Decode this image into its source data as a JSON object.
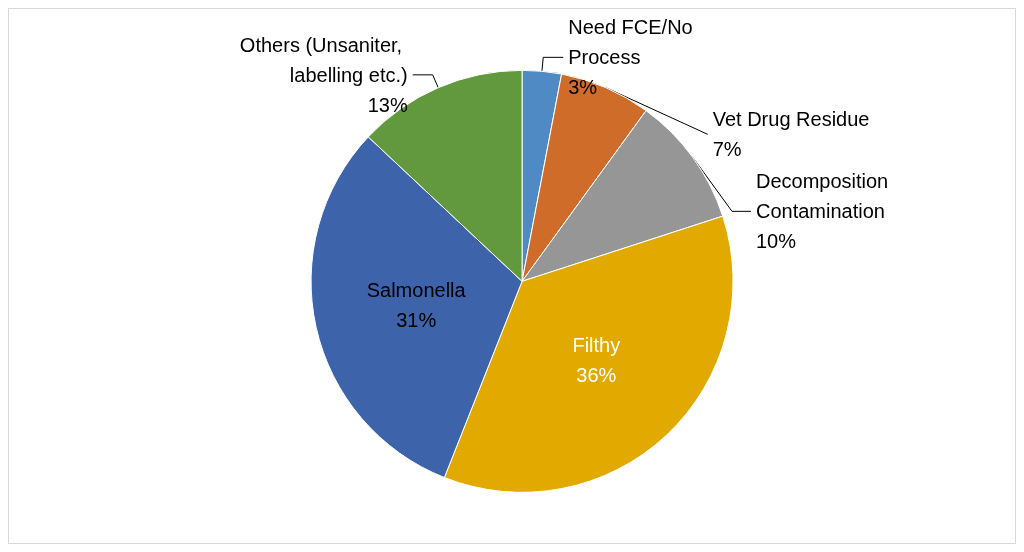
{
  "chart_data": {
    "type": "pie",
    "categories": [
      "Need FCE/No Process",
      "Vet Drug Residue",
      "Decomposition Contamination",
      "Filthy",
      "Salmonella",
      "Others (Unsaniter, labelling etc.)"
    ],
    "values": [
      3,
      7,
      10,
      36,
      31,
      13
    ],
    "colors": [
      "#4f8ac4",
      "#d06c2a",
      "#969696",
      "#e2aa00",
      "#3d63ab",
      "#62993e"
    ],
    "value_labels": [
      "3%",
      "7%",
      "10%",
      "36%",
      "31%",
      "13%"
    ],
    "legend": false
  }
}
